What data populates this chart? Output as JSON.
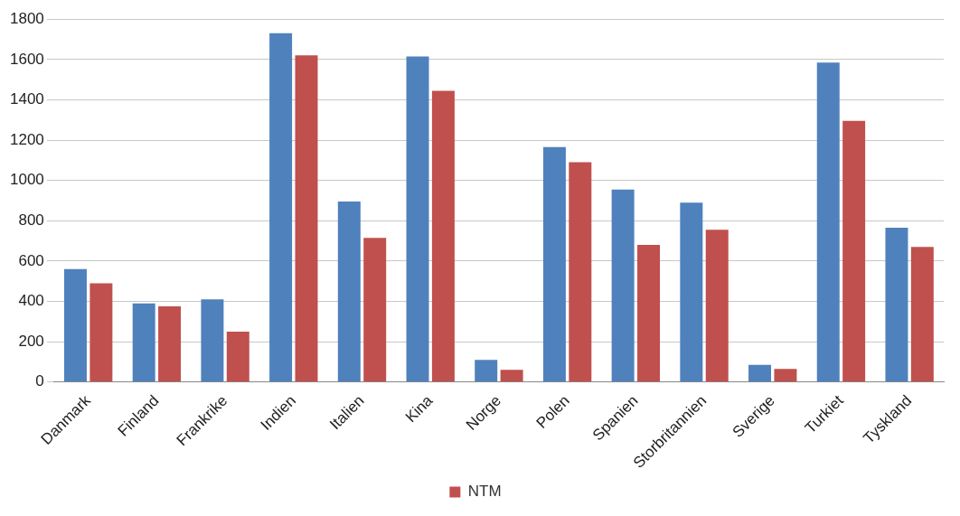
{
  "chart_data": {
    "type": "bar",
    "categories": [
      "Danmark",
      "Finland",
      "Frankrike",
      "Indien",
      "Italien",
      "Kina",
      "Norge",
      "Polen",
      "Spanien",
      "Storbritannien",
      "Sverige",
      "Turkiet",
      "Tyskland"
    ],
    "series": [
      {
        "color": "#4f81bd",
        "values": [
          560,
          390,
          410,
          1730,
          895,
          1615,
          110,
          1165,
          955,
          890,
          85,
          1585,
          765
        ]
      },
      {
        "name": "NTM",
        "color": "#c0504d",
        "values": [
          490,
          375,
          250,
          1620,
          715,
          1445,
          60,
          1090,
          680,
          755,
          65,
          1295,
          670
        ]
      }
    ],
    "ylim": [
      0,
      1800
    ],
    "yticks": [
      0,
      200,
      400,
      600,
      800,
      1000,
      1200,
      1400,
      1600,
      1800
    ],
    "grid": "y",
    "legend": "bottom"
  }
}
